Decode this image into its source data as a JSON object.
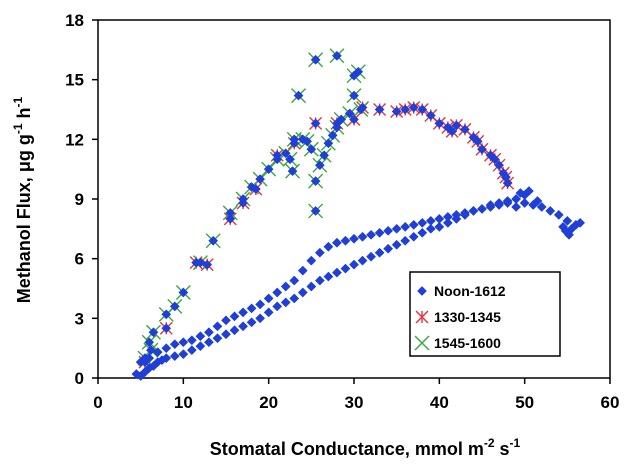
{
  "chart_data": {
    "type": "scatter",
    "xlabel_parts": [
      "Stomatal Conductance, mmol m",
      "-2",
      " s",
      "-1"
    ],
    "ylabel_parts": [
      "Methanol Flux, ",
      "μ",
      "g g",
      "-1",
      " h",
      "-1"
    ],
    "xlim": [
      0,
      60
    ],
    "ylim": [
      0,
      18
    ],
    "xticks": [
      0,
      10,
      20,
      30,
      40,
      50,
      60
    ],
    "yticks": [
      0,
      3,
      6,
      9,
      12,
      15,
      18
    ],
    "grid": false,
    "legend_position": "lower-right",
    "series": [
      {
        "name": "Noon-1612",
        "marker": "diamond",
        "color": "#1f3fd6",
        "points": [
          [
            4.5,
            0.2
          ],
          [
            5,
            0.1
          ],
          [
            5.5,
            0.3
          ],
          [
            6,
            0.5
          ],
          [
            6.5,
            0.6
          ],
          [
            7,
            0.8
          ],
          [
            7.5,
            0.9
          ],
          [
            8,
            1.0
          ],
          [
            9,
            1.1
          ],
          [
            10,
            1.2
          ],
          [
            11,
            1.4
          ],
          [
            12,
            1.6
          ],
          [
            13,
            1.8
          ],
          [
            14,
            2.0
          ],
          [
            15,
            2.2
          ],
          [
            16,
            2.4
          ],
          [
            17,
            2.6
          ],
          [
            18,
            2.8
          ],
          [
            19,
            3.0
          ],
          [
            20,
            3.3
          ],
          [
            21,
            3.6
          ],
          [
            22,
            3.8
          ],
          [
            23,
            4.0
          ],
          [
            24,
            4.3
          ],
          [
            25,
            4.6
          ],
          [
            26,
            4.9
          ],
          [
            27,
            5.1
          ],
          [
            28,
            5.3
          ],
          [
            29,
            5.5
          ],
          [
            30,
            5.7
          ],
          [
            31,
            5.9
          ],
          [
            32,
            6.1
          ],
          [
            33,
            6.3
          ],
          [
            34,
            6.5
          ],
          [
            35,
            6.7
          ],
          [
            36,
            6.9
          ],
          [
            37,
            7.1
          ],
          [
            38,
            7.3
          ],
          [
            39,
            7.5
          ],
          [
            40,
            7.6
          ],
          [
            41,
            7.8
          ],
          [
            42,
            8.0
          ],
          [
            43,
            8.2
          ],
          [
            44,
            8.4
          ],
          [
            45,
            8.5
          ],
          [
            46,
            8.7
          ],
          [
            47,
            8.8
          ],
          [
            48,
            8.9
          ],
          [
            49,
            9.0
          ],
          [
            50,
            9.2
          ],
          [
            5,
            0.8
          ],
          [
            6,
            1.0
          ],
          [
            7,
            1.3
          ],
          [
            8,
            1.5
          ],
          [
            9,
            1.7
          ],
          [
            10,
            1.8
          ],
          [
            11,
            1.9
          ],
          [
            12,
            2.1
          ],
          [
            13,
            2.3
          ],
          [
            14,
            2.6
          ],
          [
            15,
            2.9
          ],
          [
            16,
            3.1
          ],
          [
            17,
            3.3
          ],
          [
            18,
            3.5
          ],
          [
            19,
            3.7
          ],
          [
            20,
            4.0
          ],
          [
            21,
            4.3
          ],
          [
            22,
            4.6
          ],
          [
            23,
            4.9
          ],
          [
            24,
            5.4
          ],
          [
            25,
            5.9
          ],
          [
            26,
            6.3
          ],
          [
            27,
            6.6
          ],
          [
            28,
            6.8
          ],
          [
            29,
            6.9
          ],
          [
            30,
            7.0
          ],
          [
            31,
            7.1
          ],
          [
            32,
            7.2
          ],
          [
            33,
            7.3
          ],
          [
            34,
            7.4
          ],
          [
            35,
            7.5
          ],
          [
            36,
            7.6
          ],
          [
            37,
            7.7
          ],
          [
            38,
            7.8
          ],
          [
            39,
            7.9
          ],
          [
            40,
            8.0
          ],
          [
            41,
            8.1
          ],
          [
            42,
            8.2
          ],
          [
            43,
            8.3
          ],
          [
            44,
            8.4
          ],
          [
            45,
            8.5
          ],
          [
            46,
            8.6
          ],
          [
            47,
            8.7
          ],
          [
            48,
            8.8
          ],
          [
            49,
            8.6
          ],
          [
            50,
            8.8
          ],
          [
            51,
            8.7
          ],
          [
            52,
            8.6
          ],
          [
            53,
            8.4
          ],
          [
            54,
            8.2
          ],
          [
            54.5,
            7.6
          ],
          [
            55,
            7.9
          ],
          [
            55.5,
            7.5
          ],
          [
            56,
            7.7
          ],
          [
            56.5,
            7.8
          ],
          [
            55.2,
            7.2
          ],
          [
            54.8,
            7.4
          ],
          [
            50.5,
            9.4
          ],
          [
            49.5,
            9.3
          ],
          [
            51.5,
            8.9
          ]
        ]
      },
      {
        "name": "1330-1345",
        "marker": "asterisk",
        "color": "#e8323a",
        "points": [
          [
            5.5,
            0.8
          ],
          [
            8,
            2.5
          ],
          [
            11.5,
            5.8
          ],
          [
            12.8,
            5.7
          ],
          [
            15.5,
            8.0
          ],
          [
            17,
            8.8
          ],
          [
            18.5,
            9.5
          ],
          [
            21,
            11.2
          ],
          [
            23,
            11.8
          ],
          [
            25.5,
            12.8
          ],
          [
            28,
            12.8
          ],
          [
            30,
            13.0
          ],
          [
            31,
            13.6
          ],
          [
            33,
            13.5
          ],
          [
            35,
            13.4
          ],
          [
            36,
            13.5
          ],
          [
            37,
            13.6
          ],
          [
            38,
            13.5
          ],
          [
            39,
            13.2
          ],
          [
            40,
            12.8
          ],
          [
            41,
            12.6
          ],
          [
            42,
            12.7
          ],
          [
            43,
            12.5
          ],
          [
            44,
            12.1
          ],
          [
            45,
            11.5
          ],
          [
            46,
            11.2
          ],
          [
            47,
            10.7
          ],
          [
            47.5,
            10.3
          ],
          [
            48,
            9.8
          ],
          [
            47.8,
            10.1
          ],
          [
            46.5,
            11.0
          ],
          [
            44.5,
            11.9
          ],
          [
            41.5,
            12.4
          ]
        ]
      },
      {
        "name": "1545-1600",
        "marker": "cross",
        "color": "#3aa83a",
        "points": [
          [
            5.5,
            1.0
          ],
          [
            6,
            1.8
          ],
          [
            6.5,
            2.3
          ],
          [
            8,
            3.2
          ],
          [
            9,
            3.6
          ],
          [
            10,
            4.3
          ],
          [
            12,
            5.8
          ],
          [
            13.5,
            6.9
          ],
          [
            15.5,
            8.3
          ],
          [
            17,
            9.0
          ],
          [
            18,
            9.6
          ],
          [
            19,
            10.0
          ],
          [
            20,
            10.5
          ],
          [
            21,
            11.0
          ],
          [
            22,
            11.3
          ],
          [
            22.5,
            11.0
          ],
          [
            23,
            12.0
          ],
          [
            23.5,
            14.2
          ],
          [
            25.5,
            16.0
          ],
          [
            26,
            10.7
          ],
          [
            25.5,
            9.9
          ],
          [
            25.5,
            8.4
          ],
          [
            26.5,
            11.2
          ],
          [
            27,
            11.8
          ],
          [
            27.5,
            12.2
          ],
          [
            28,
            12.6
          ],
          [
            28,
            16.2
          ],
          [
            28.5,
            13.0
          ],
          [
            29.5,
            13.3
          ],
          [
            30,
            14.2
          ],
          [
            30,
            15.2
          ],
          [
            30.5,
            15.4
          ],
          [
            30.8,
            13.5
          ],
          [
            24,
            12.0
          ],
          [
            25,
            11.5
          ],
          [
            22.8,
            10.4
          ],
          [
            24.5,
            11.9
          ],
          [
            6.2,
            1.4
          ]
        ]
      }
    ]
  }
}
